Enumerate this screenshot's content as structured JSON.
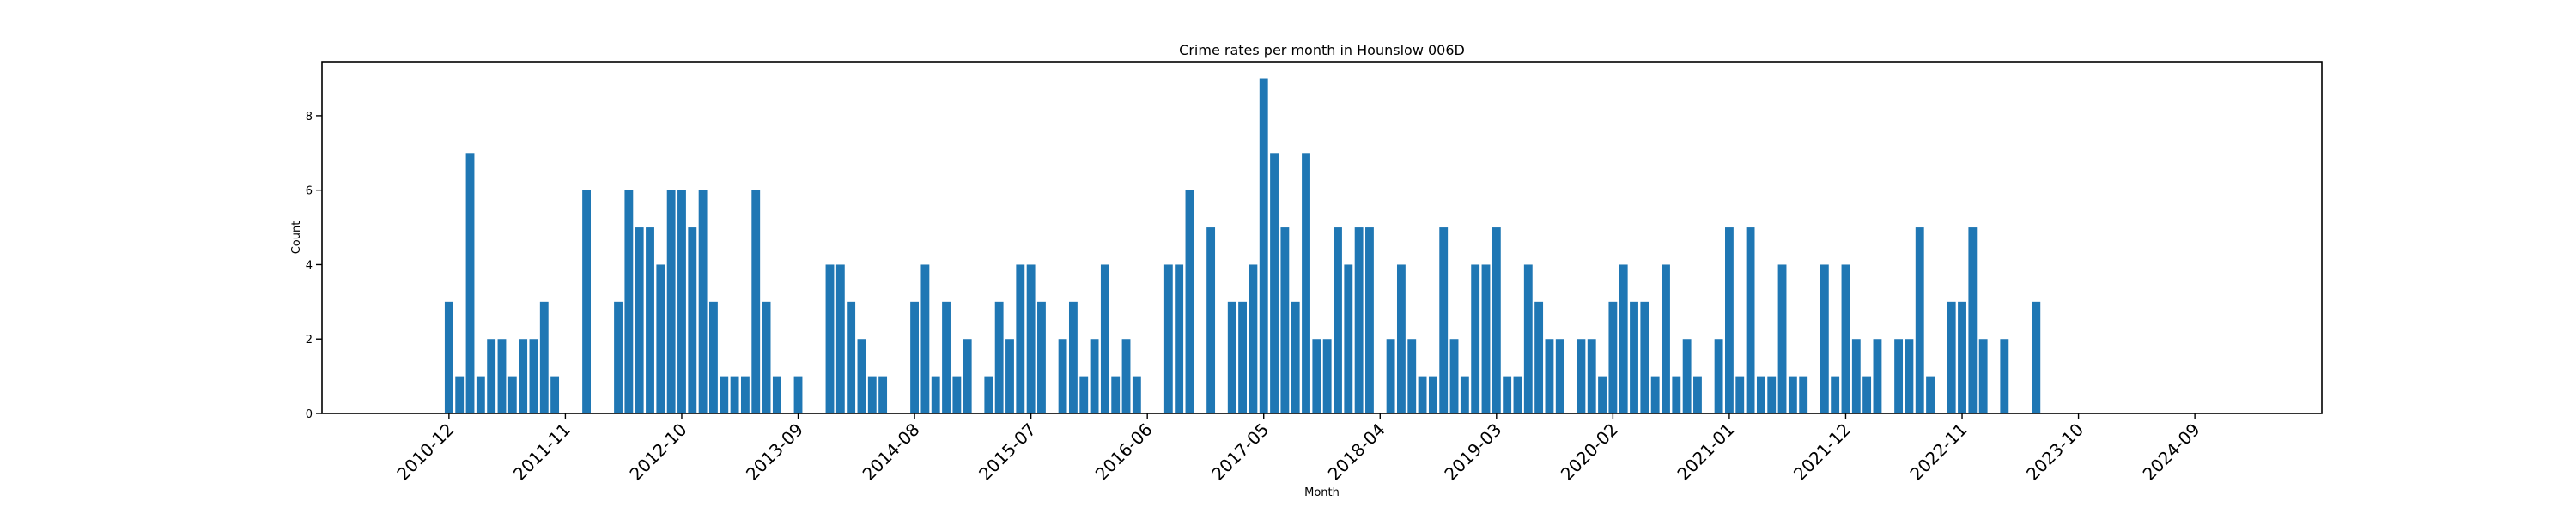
{
  "chart_data": {
    "type": "bar",
    "title": "Crime rates per month in Hounslow 006D",
    "xlabel": "Month",
    "ylabel": "Count",
    "x_start": "2010-12",
    "x_range": [
      "2009-12",
      "2025-09"
    ],
    "ylim": [
      0,
      9.45
    ],
    "yticks": [
      0,
      2,
      4,
      6,
      8
    ],
    "xticks": [
      "2010-12",
      "2011-11",
      "2012-10",
      "2013-09",
      "2014-08",
      "2015-07",
      "2016-06",
      "2017-05",
      "2018-04",
      "2019-03",
      "2020-02",
      "2021-01",
      "2021-12",
      "2022-11",
      "2023-10",
      "2024-09"
    ],
    "grid": false,
    "legend": "none",
    "bar_color": "#1f77b4",
    "values": [
      3,
      1,
      7,
      1,
      2,
      2,
      1,
      2,
      2,
      3,
      1,
      0,
      0,
      6,
      0,
      0,
      3,
      6,
      5,
      5,
      4,
      6,
      6,
      5,
      6,
      3,
      1,
      1,
      1,
      6,
      3,
      1,
      0,
      1,
      0,
      0,
      4,
      4,
      3,
      2,
      1,
      1,
      0,
      0,
      3,
      4,
      1,
      3,
      1,
      2,
      0,
      1,
      3,
      2,
      4,
      4,
      3,
      0,
      2,
      3,
      1,
      2,
      4,
      1,
      2,
      1,
      0,
      0,
      4,
      4,
      6,
      0,
      5,
      0,
      3,
      3,
      4,
      9,
      7,
      5,
      3,
      7,
      2,
      2,
      5,
      4,
      5,
      5,
      0,
      2,
      4,
      2,
      1,
      1,
      5,
      2,
      1,
      4,
      4,
      5,
      1,
      1,
      4,
      3,
      2,
      2,
      0,
      2,
      2,
      1,
      3,
      4,
      3,
      3,
      1,
      4,
      1,
      2,
      1,
      0,
      2,
      5,
      1,
      5,
      1,
      1,
      4,
      1,
      1,
      0,
      4,
      1,
      4,
      2,
      1,
      2,
      0,
      2,
      2,
      5,
      1,
      0,
      3,
      3,
      5,
      2,
      0,
      2,
      0,
      0,
      3
    ]
  }
}
